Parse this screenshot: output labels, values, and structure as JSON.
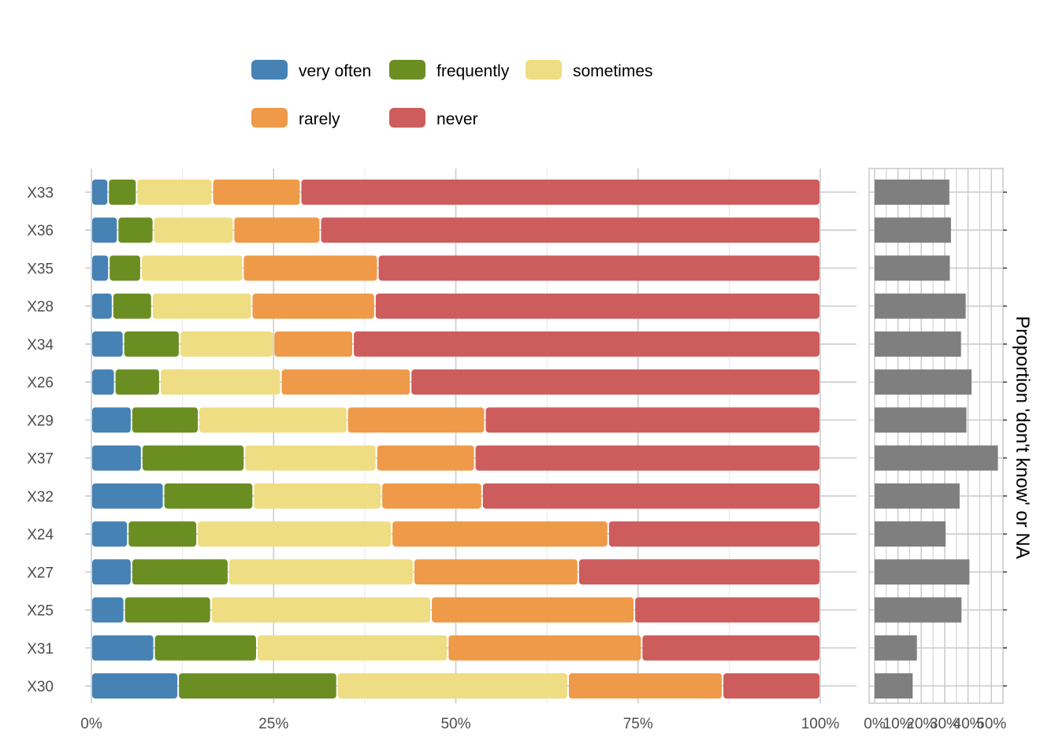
{
  "chart_data": [
    {
      "type": "bar",
      "orientation": "horizontal",
      "stacked": "percent",
      "categories": [
        "X33",
        "X36",
        "X35",
        "X28",
        "X34",
        "X26",
        "X29",
        "X37",
        "X32",
        "X24",
        "X27",
        "X25",
        "X31",
        "X30"
      ],
      "series": [
        {
          "name": "very often",
          "color": "#4682b4",
          "values": [
            2.3,
            3.6,
            2.4,
            2.9,
            4.4,
            3.2,
            5.5,
            6.9,
            9.9,
            5.0,
            5.5,
            4.5,
            8.6,
            11.9
          ]
        },
        {
          "name": "frequently",
          "color": "#6b8e23",
          "values": [
            3.9,
            4.9,
            4.4,
            5.4,
            7.7,
            6.2,
            9.2,
            14.1,
            12.3,
            9.5,
            13.3,
            11.9,
            14.1,
            21.8
          ]
        },
        {
          "name": "sometimes",
          "color": "#eedd82",
          "values": [
            10.4,
            11.0,
            14.0,
            13.7,
            12.9,
            16.6,
            20.4,
            18.1,
            17.6,
            26.7,
            25.4,
            30.2,
            26.2,
            31.7
          ]
        },
        {
          "name": "rarely",
          "color": "#ee9a49",
          "values": [
            12.1,
            11.9,
            18.5,
            16.9,
            10.9,
            17.8,
            18.9,
            13.5,
            13.8,
            29.7,
            22.6,
            27.9,
            26.6,
            21.2
          ]
        },
        {
          "name": "never",
          "color": "#cd5c5c",
          "values": [
            71.3,
            68.6,
            60.7,
            61.1,
            64.1,
            56.2,
            46.0,
            47.4,
            46.4,
            29.1,
            33.2,
            25.5,
            24.5,
            13.4
          ]
        }
      ],
      "xlim": [
        0,
        100
      ],
      "x_ticks": [
        "0%",
        "25%",
        "50%",
        "75%",
        "100%"
      ],
      "grid": true,
      "legend": {
        "position": "top",
        "entries": [
          "very often",
          "frequently",
          "sometimes",
          "rarely",
          "never"
        ]
      }
    },
    {
      "type": "bar",
      "orientation": "horizontal",
      "categories": [
        "X33",
        "X36",
        "X35",
        "X28",
        "X34",
        "X26",
        "X29",
        "X37",
        "X32",
        "X24",
        "X27",
        "X25",
        "X31",
        "X30"
      ],
      "values": [
        32.0,
        32.7,
        32.2,
        39.0,
        37.0,
        41.5,
        39.3,
        52.8,
        36.4,
        30.4,
        40.6,
        37.2,
        18.1,
        16.3
      ],
      "color": "#7f7f7f",
      "xlim": [
        0,
        55
      ],
      "x_ticks": [
        "0%",
        "10%",
        "20%",
        "30%",
        "40%",
        "50%"
      ],
      "ylabel": "Proportion 'don't know' or NA",
      "grid": true
    }
  ]
}
